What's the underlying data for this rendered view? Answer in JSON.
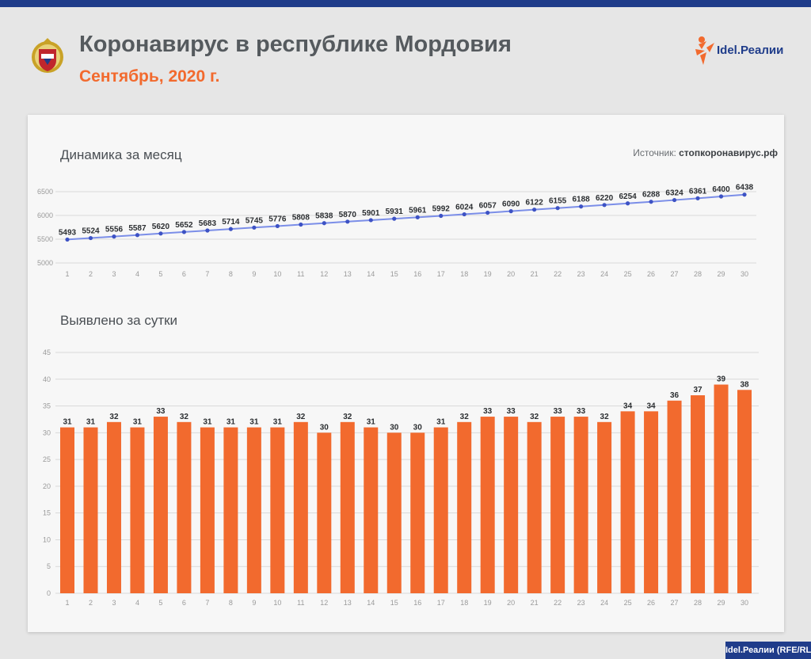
{
  "header": {
    "title": "Коронавирус в республике Мордовия",
    "subtitle": "Сентябрь, 2020 г.",
    "logo_text": "Idel.Реалии",
    "credit": "Idel.Реалии (RFE/RL)"
  },
  "source": {
    "label": "Источник:",
    "value": "стопкоронавирус.рф"
  },
  "colors": {
    "brand_blue": "#1f3c8a",
    "accent_orange": "#f26a2e",
    "line": "#7b8ee8",
    "bar": "#f26a2e"
  },
  "chart_data": [
    {
      "type": "line",
      "title": "Динамика за месяц",
      "x": [
        1,
        2,
        3,
        4,
        5,
        6,
        7,
        8,
        9,
        10,
        11,
        12,
        13,
        14,
        15,
        16,
        17,
        18,
        19,
        20,
        21,
        22,
        23,
        24,
        25,
        26,
        27,
        28,
        29,
        30
      ],
      "values": [
        5493,
        5524,
        5556,
        5587,
        5620,
        5652,
        5683,
        5714,
        5745,
        5776,
        5808,
        5838,
        5870,
        5901,
        5931,
        5961,
        5992,
        6024,
        6057,
        6090,
        6122,
        6155,
        6188,
        6220,
        6254,
        6288,
        6324,
        6361,
        6400,
        6438
      ],
      "yticks": [
        5000,
        5500,
        6000,
        6500
      ],
      "ylim": [
        5000,
        6500
      ],
      "grid": true
    },
    {
      "type": "bar",
      "title": "Выявлено за сутки",
      "categories": [
        1,
        2,
        3,
        4,
        5,
        6,
        7,
        8,
        9,
        10,
        11,
        12,
        13,
        14,
        15,
        16,
        17,
        18,
        19,
        20,
        21,
        22,
        23,
        24,
        25,
        26,
        27,
        28,
        29,
        30
      ],
      "values": [
        31,
        31,
        32,
        31,
        33,
        32,
        31,
        31,
        31,
        31,
        32,
        30,
        32,
        31,
        30,
        30,
        31,
        32,
        33,
        33,
        32,
        33,
        33,
        32,
        34,
        34,
        36,
        37,
        39,
        38
      ],
      "yticks": [
        0,
        5,
        10,
        15,
        20,
        25,
        30,
        35,
        40,
        45
      ],
      "ylim": [
        0,
        45
      ],
      "grid": true
    }
  ]
}
